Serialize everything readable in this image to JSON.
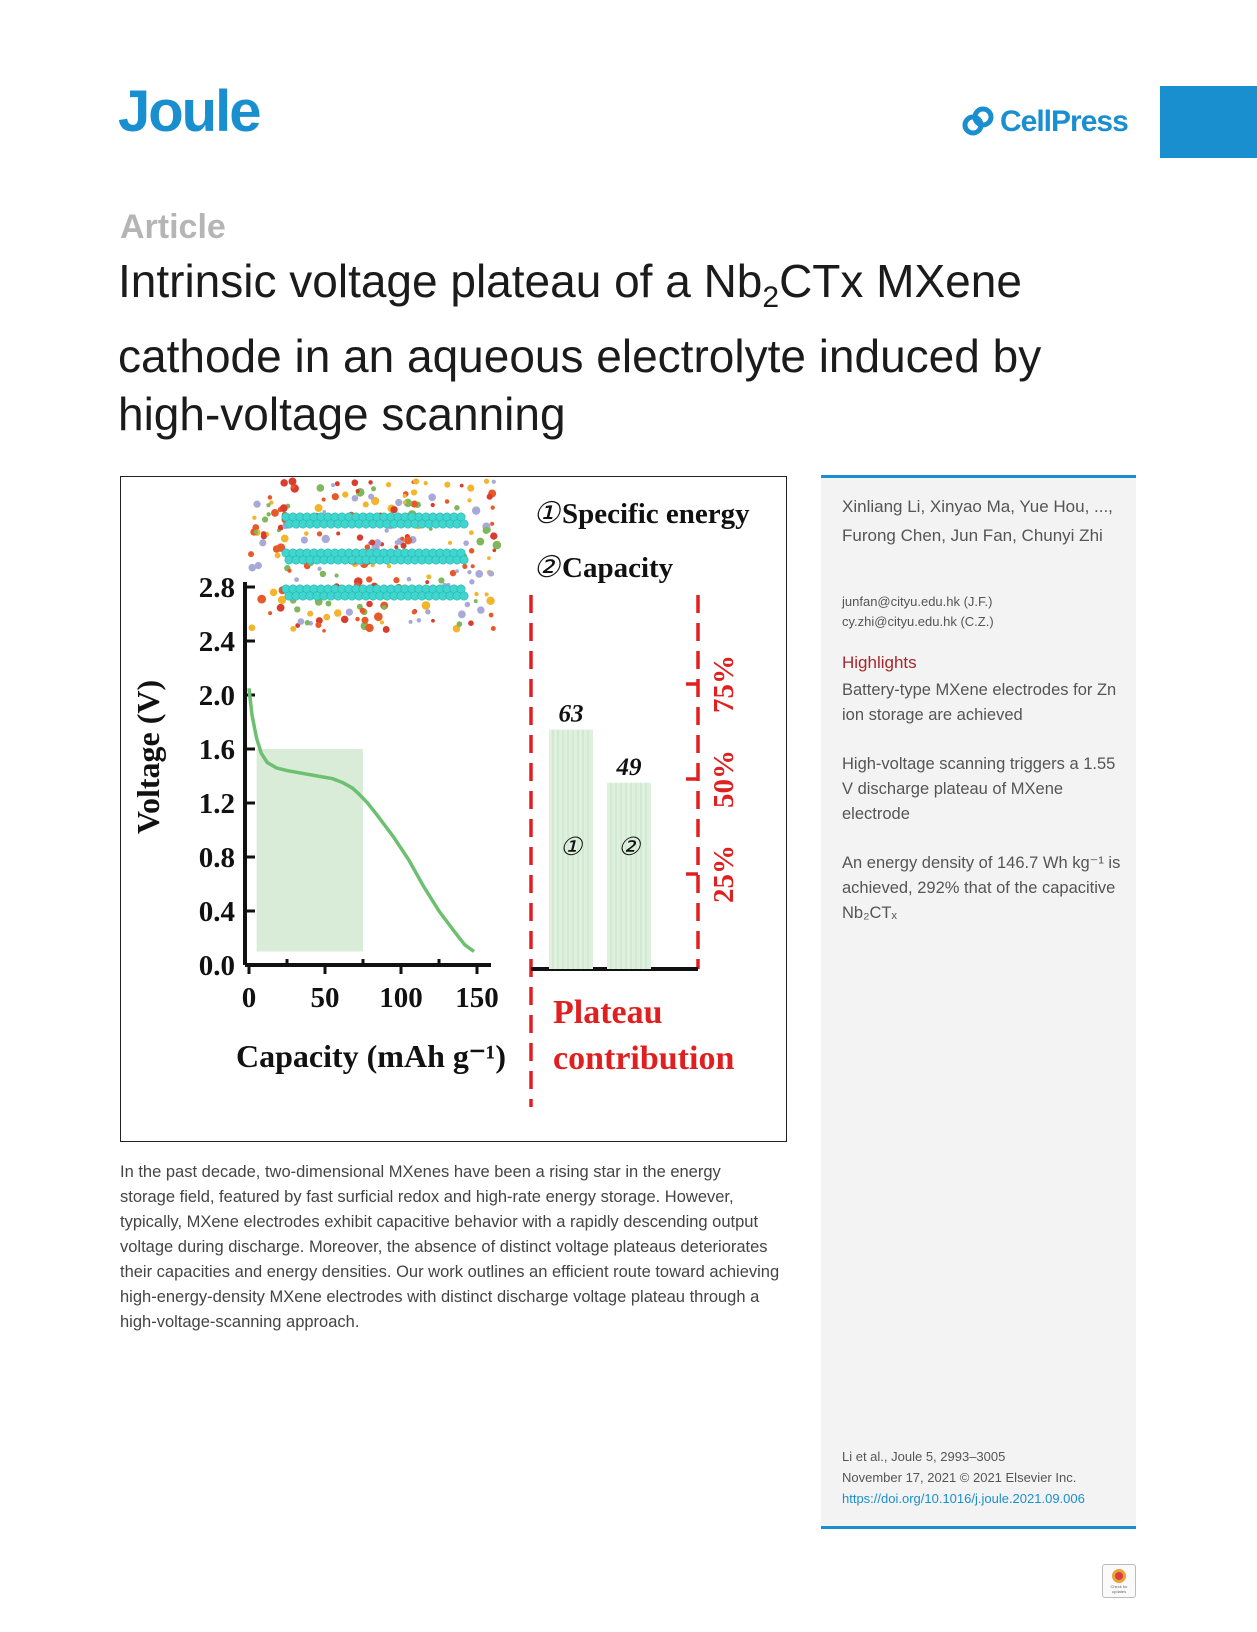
{
  "header": {
    "journal": "Joule",
    "publisher": "CellPress"
  },
  "article": {
    "type": "Article",
    "title_part1": "Intrinsic voltage plateau of a Nb",
    "title_sub": "2",
    "title_part2": "CTx MXene cathode in an aqueous electrolyte induced by high-voltage scanning"
  },
  "figure": {
    "legend_1_num": "①",
    "legend_1": "Specific energy",
    "legend_2_num": "②",
    "legend_2": "Capacity",
    "plateau_label_line1": "Plateau",
    "plateau_label_line2": "contribution",
    "right_axis_ticks": [
      "25%",
      "50%",
      "75%"
    ]
  },
  "chart_data": [
    {
      "type": "line",
      "xlabel": "Capacity (mAh g⁻¹)",
      "ylabel": "Voltage (V)",
      "xlim": [
        0,
        150
      ],
      "ylim": [
        0,
        2.8
      ],
      "x_ticks": [
        "0",
        "50",
        "100",
        "150"
      ],
      "y_ticks": [
        "0.0",
        "0.4",
        "0.8",
        "1.2",
        "1.6",
        "2.0",
        "2.4",
        "2.8"
      ],
      "series": [
        {
          "x": [
            0,
            2,
            5,
            8,
            12,
            18,
            25,
            35,
            45,
            55,
            62,
            68,
            72,
            78,
            85,
            95,
            105,
            115,
            125,
            135,
            142,
            148
          ],
          "y": [
            2.05,
            1.85,
            1.68,
            1.57,
            1.5,
            1.46,
            1.44,
            1.42,
            1.4,
            1.38,
            1.35,
            1.31,
            1.27,
            1.2,
            1.1,
            0.95,
            0.78,
            0.58,
            0.4,
            0.25,
            0.15,
            0.1
          ]
        }
      ],
      "shaded_region": {
        "x": [
          5,
          75
        ],
        "y": [
          0.1,
          1.6
        ]
      }
    },
    {
      "type": "bar",
      "categories": [
        "①",
        "②"
      ],
      "values": [
        63,
        49
      ],
      "ylim": [
        0,
        100
      ]
    }
  ],
  "abstract": "In the past decade, two-dimensional MXenes have been a rising star in the energy storage field, featured by fast surficial redox and high-rate energy storage. However, typically, MXene electrodes exhibit capacitive behavior with a rapidly descending output voltage during discharge. Moreover, the absence of distinct voltage plateaus deteriorates their capacities and energy densities. Our work outlines an efficient route toward achieving high-energy-density MXene electrodes with distinct discharge voltage plateau through a high-voltage-scanning approach.",
  "sidebar": {
    "authors": "Xinliang Li, Xinyao Ma, Yue Hou, ..., Furong Chen, Jun Fan, Chunyi Zhi",
    "emails": [
      "junfan@cityu.edu.hk (J.F.)",
      "cy.zhi@cityu.edu.hk (C.Z.)"
    ],
    "highlights_title": "Highlights",
    "highlights": [
      "Battery-type MXene electrodes for Zn ion storage are achieved",
      "High-voltage scanning triggers a 1.55 V discharge plateau of MXene electrode",
      "An energy density of 146.7 Wh kg⁻¹ is achieved, 292% that of the capacitive Nb₂CTₓ"
    ],
    "citation_line1": "Li et al., Joule 5, 2993–3005",
    "citation_line2": "November 17, 2021 © 2021 Elsevier Inc.",
    "doi": "https://doi.org/10.1016/j.joule.2021.09.006"
  },
  "crossmark": {
    "label": "Check for updates",
    "icon": "crossmark-icon"
  },
  "colors": {
    "brand": "#1a8fd0",
    "highlight_title": "#a6282c",
    "curve": "#6cc070",
    "shade": "#d8ecd8",
    "plateau": "#e02020"
  }
}
